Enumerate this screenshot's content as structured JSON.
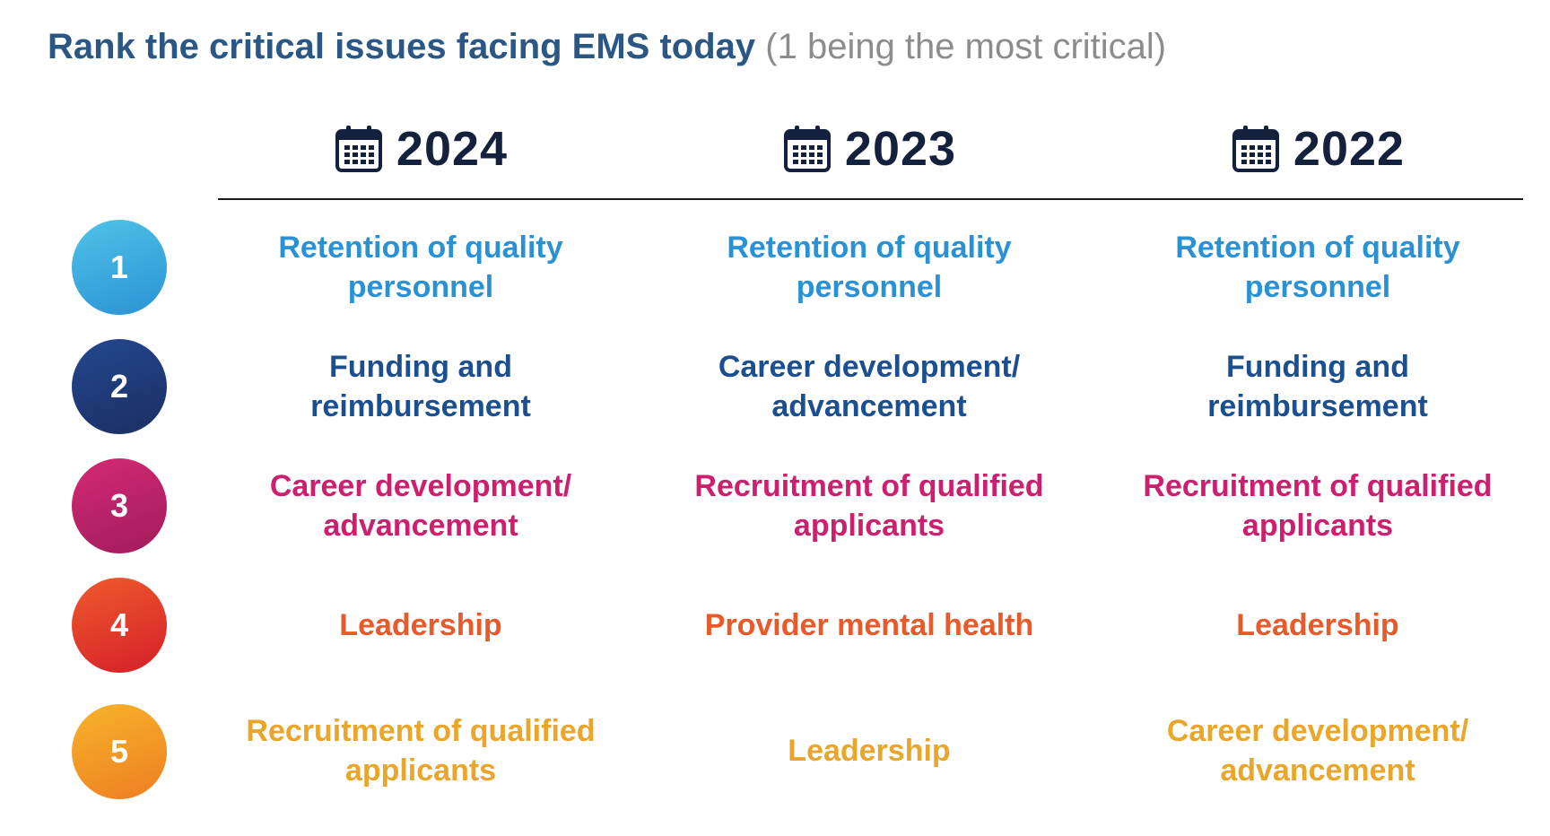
{
  "title": {
    "main": "Rank the critical issues facing EMS today",
    "sub": "(1 being the most critical)"
  },
  "years": [
    {
      "label": "2024",
      "icon": "calendar-icon"
    },
    {
      "label": "2023",
      "icon": "calendar-icon"
    },
    {
      "label": "2022",
      "icon": "calendar-icon"
    }
  ],
  "ranks": [
    {
      "label": "1",
      "gradient": [
        "#4fc3e8",
        "#2a92d4"
      ]
    },
    {
      "label": "2",
      "gradient": [
        "#24478f",
        "#1b2f63"
      ]
    },
    {
      "label": "3",
      "gradient": [
        "#d42a74",
        "#a11c5c"
      ]
    },
    {
      "label": "4",
      "gradient": [
        "#ef5a2c",
        "#d4202a"
      ]
    },
    {
      "label": "5",
      "gradient": [
        "#f6b42a",
        "#ee7e22"
      ]
    }
  ],
  "row_colors": [
    "#2a92d4",
    "#1b4f8f",
    "#cc1f6e",
    "#e85a2a",
    "#e9a62a"
  ],
  "grid": [
    [
      "Retention of quality personnel",
      "Retention of quality personnel",
      "Retention of quality personnel"
    ],
    [
      "Funding and reimbursement",
      "Career development/ advancement",
      "Funding and reimbursement"
    ],
    [
      "Career development/ advancement",
      "Recruitment of qualified applicants",
      "Recruitment of qualified applicants"
    ],
    [
      "Leadership",
      "Provider mental health",
      "Leadership"
    ],
    [
      "Recruitment of qualified applicants",
      "Leadership",
      "Career development/ advancement"
    ]
  ]
}
